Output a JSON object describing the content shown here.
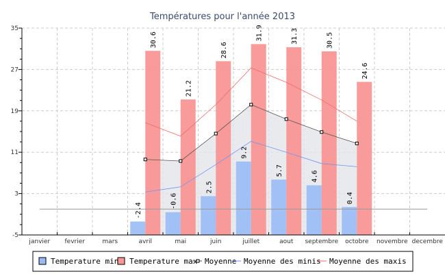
{
  "chart_data": {
    "type": "bar",
    "title": "Températures pour l'année 2013",
    "categories": [
      "janvier",
      "fevrier",
      "mars",
      "avril",
      "mai",
      "juin",
      "juillet",
      "aout",
      "septembre",
      "octobre",
      "novembre",
      "decembre"
    ],
    "ylim": [
      -5,
      35
    ],
    "yticks": [
      -5,
      3,
      11,
      19,
      27,
      35
    ],
    "grid": true,
    "legend_position": "bottom",
    "series": [
      {
        "name": "Temperature min",
        "kind": "bar",
        "color": "#99bbf5",
        "values": [
          null,
          null,
          null,
          -2.4,
          -0.6,
          2.5,
          9.2,
          5.7,
          4.6,
          0.4,
          null,
          null
        ],
        "labels": [
          "",
          "",
          "",
          "-2.4",
          "-0.6",
          "2.5",
          "9.2",
          "5.7",
          "4.6",
          "0.4",
          "",
          ""
        ]
      },
      {
        "name": "Temperature max",
        "kind": "bar",
        "color": "#f99696",
        "values": [
          null,
          null,
          null,
          30.6,
          21.2,
          28.6,
          31.9,
          31.3,
          30.5,
          24.6,
          null,
          null
        ],
        "labels": [
          "",
          "",
          "",
          "30.6",
          "21.2",
          "28.6",
          "31.9",
          "31.3",
          "30.5",
          "24.6",
          "",
          ""
        ]
      },
      {
        "name": "Moyenne",
        "kind": "line-area",
        "color": "#555555",
        "values": [
          null,
          null,
          null,
          9.6,
          9.3,
          14.6,
          20.2,
          17.4,
          14.9,
          12.7,
          null,
          null
        ]
      },
      {
        "name": "Moyenne des minis",
        "kind": "line",
        "color": "#6f95ee",
        "values": [
          null,
          null,
          null,
          3.3,
          4.3,
          8.6,
          13.1,
          11.0,
          8.8,
          8.2,
          null,
          null
        ]
      },
      {
        "name": "Moyenne des maxis",
        "kind": "line",
        "color": "#f06a6a",
        "values": [
          null,
          null,
          null,
          16.7,
          14.1,
          20.2,
          27.3,
          24.5,
          21.1,
          17.0,
          null,
          null
        ]
      },
      {
        "name": "baseline",
        "kind": "hline",
        "color": "#999999",
        "value": 0
      }
    ]
  }
}
